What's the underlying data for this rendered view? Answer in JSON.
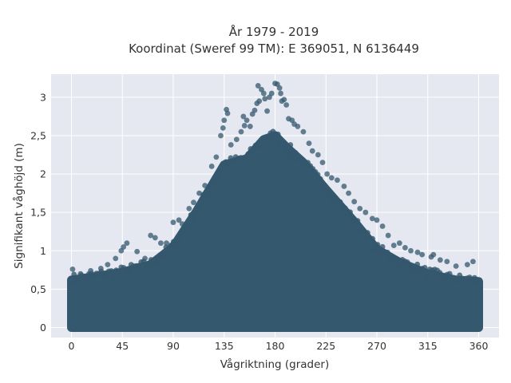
{
  "chart_data": {
    "type": "scatter",
    "title": "År 1979 - 2019",
    "subtitle": "Koordinat (Sweref 99 TM): E 369051, N 6136449",
    "xlabel": "Vågriktning (grader)",
    "ylabel": "Signifikant våghöjd (m)",
    "xlim": [
      -18,
      378
    ],
    "ylim": [
      -0.13,
      3.3
    ],
    "x_ticks": [
      0,
      45,
      90,
      135,
      180,
      225,
      270,
      315,
      360
    ],
    "x_tick_labels": [
      "0",
      "45",
      "90",
      "135",
      "180",
      "225",
      "270",
      "315",
      "360"
    ],
    "y_ticks": [
      0,
      0.5,
      1,
      1.5,
      2,
      2.5,
      3
    ],
    "y_tick_labels": [
      "0",
      "0,5",
      "1",
      "1,5",
      "2",
      "2,5",
      "3"
    ],
    "grid": true,
    "colors": {
      "marker": "#34586e",
      "plot_background": "#e5e8f0",
      "grid": "#ffffff"
    },
    "envelope": {
      "x": [
        0,
        20,
        45,
        70,
        90,
        110,
        135,
        155,
        170,
        180,
        190,
        205,
        225,
        250,
        270,
        290,
        315,
        340,
        360
      ],
      "y": [
        0.62,
        0.66,
        0.72,
        0.82,
        1.05,
        1.5,
        2.12,
        2.2,
        2.45,
        2.5,
        2.35,
        2.15,
        1.8,
        1.38,
        1.02,
        0.85,
        0.7,
        0.62,
        0.6
      ]
    },
    "series": [
      {
        "points": [
          [
            1,
            0.76
          ],
          [
            8,
            0.7
          ],
          [
            17,
            0.74
          ],
          [
            26,
            0.77
          ],
          [
            32,
            0.82
          ],
          [
            39,
            0.9
          ],
          [
            44,
            1.0
          ],
          [
            46,
            1.05
          ],
          [
            49,
            1.1
          ],
          [
            58,
            0.99
          ],
          [
            65,
            0.9
          ],
          [
            70,
            1.2
          ],
          [
            74,
            1.17
          ],
          [
            79,
            1.1
          ],
          [
            84,
            1.1
          ],
          [
            90,
            1.37
          ],
          [
            95,
            1.4
          ],
          [
            98,
            1.35
          ],
          [
            104,
            1.55
          ],
          [
            108,
            1.63
          ],
          [
            113,
            1.75
          ],
          [
            118,
            1.85
          ],
          [
            124,
            2.1
          ],
          [
            128,
            2.22
          ],
          [
            132,
            2.5
          ],
          [
            134,
            2.6
          ],
          [
            135,
            2.7
          ],
          [
            137,
            2.84
          ],
          [
            138,
            2.79
          ],
          [
            141,
            2.38
          ],
          [
            146,
            2.45
          ],
          [
            150,
            2.55
          ],
          [
            152,
            2.75
          ],
          [
            153,
            2.63
          ],
          [
            155,
            2.7
          ],
          [
            158,
            2.62
          ],
          [
            160,
            2.78
          ],
          [
            162,
            2.83
          ],
          [
            164,
            2.92
          ],
          [
            165,
            3.15
          ],
          [
            166,
            2.95
          ],
          [
            168,
            3.1
          ],
          [
            170,
            3.05
          ],
          [
            171,
            2.98
          ],
          [
            173,
            2.82
          ],
          [
            175,
            3.0
          ],
          [
            177,
            3.05
          ],
          [
            180,
            3.18
          ],
          [
            182,
            3.17
          ],
          [
            184,
            3.12
          ],
          [
            185,
            3.05
          ],
          [
            186,
            2.95
          ],
          [
            188,
            2.97
          ],
          [
            190,
            2.9
          ],
          [
            192,
            2.72
          ],
          [
            195,
            2.7
          ],
          [
            197,
            2.65
          ],
          [
            200,
            2.62
          ],
          [
            205,
            2.55
          ],
          [
            210,
            2.4
          ],
          [
            213,
            2.3
          ],
          [
            218,
            2.25
          ],
          [
            222,
            2.15
          ],
          [
            226,
            2.0
          ],
          [
            230,
            1.95
          ],
          [
            235,
            1.92
          ],
          [
            241,
            1.84
          ],
          [
            245,
            1.75
          ],
          [
            250,
            1.64
          ],
          [
            255,
            1.55
          ],
          [
            260,
            1.5
          ],
          [
            266,
            1.42
          ],
          [
            270,
            1.4
          ],
          [
            275,
            1.32
          ],
          [
            280,
            1.2
          ],
          [
            285,
            1.07
          ],
          [
            290,
            1.1
          ],
          [
            295,
            1.04
          ],
          [
            300,
            1.0
          ],
          [
            306,
            0.98
          ],
          [
            310,
            0.95
          ],
          [
            318,
            0.92
          ],
          [
            320,
            0.95
          ],
          [
            326,
            0.88
          ],
          [
            332,
            0.86
          ],
          [
            340,
            0.8
          ],
          [
            350,
            0.82
          ],
          [
            355,
            0.86
          ]
        ]
      }
    ]
  }
}
